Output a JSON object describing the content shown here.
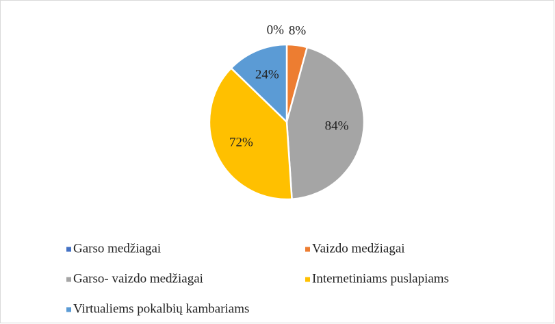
{
  "chart_data": {
    "type": "pie",
    "categories": [
      "Garso medžiagai",
      "Vaizdo medžiagai",
      "Garso- vaizdo medžiagai",
      "Internetiniams puslapiams",
      "Virtualiems pokalbių kambariams"
    ],
    "values": [
      0,
      8,
      84,
      72,
      24
    ],
    "value_labels": [
      "0%",
      "8%",
      "84%",
      "72%",
      "24%"
    ],
    "colors": [
      "#4472c4",
      "#ed7d31",
      "#a5a5a5",
      "#ffc000",
      "#5b9bd5"
    ],
    "legend": "bottom"
  }
}
